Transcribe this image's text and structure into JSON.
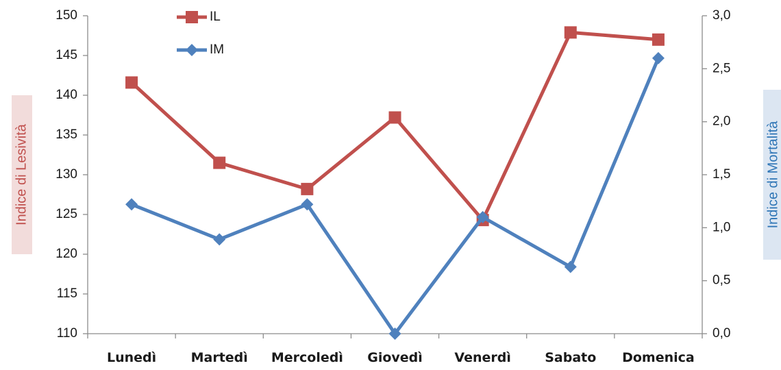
{
  "chart_data": {
    "type": "line",
    "categories": [
      "Lunedì",
      "Martedì",
      "Mercoledì",
      "Giovedì",
      "Venerdì",
      "Sabato",
      "Domenica"
    ],
    "series": [
      {
        "name": "IL",
        "axis": "left",
        "color": "#c0504d",
        "marker": "square",
        "values": [
          141.6,
          131.5,
          128.2,
          137.2,
          124.3,
          147.9,
          147.0
        ]
      },
      {
        "name": "IM",
        "axis": "right",
        "color": "#4f81bd",
        "marker": "diamond",
        "values": [
          1.22,
          0.89,
          1.22,
          0.0,
          1.1,
          0.63,
          2.6
        ]
      }
    ],
    "ylabel_left": "Indice di Lesività",
    "ylabel_right": "Indice di Mortalità",
    "ylim_left": [
      110,
      150
    ],
    "ylim_right": [
      0,
      3
    ],
    "yticks_left": [
      "110",
      "115",
      "120",
      "125",
      "130",
      "135",
      "140",
      "145",
      "150"
    ],
    "yticks_right": [
      "0,0",
      "0,5",
      "1,0",
      "1,5",
      "2,0",
      "2,5",
      "3,0"
    ],
    "legend_position": "top-left",
    "grid": false,
    "ylabel_left_color": "#c0504d",
    "ylabel_left_bg": "#f2dcdb",
    "ylabel_right_color": "#2e75b6",
    "ylabel_right_bg": "#dce6f2"
  }
}
